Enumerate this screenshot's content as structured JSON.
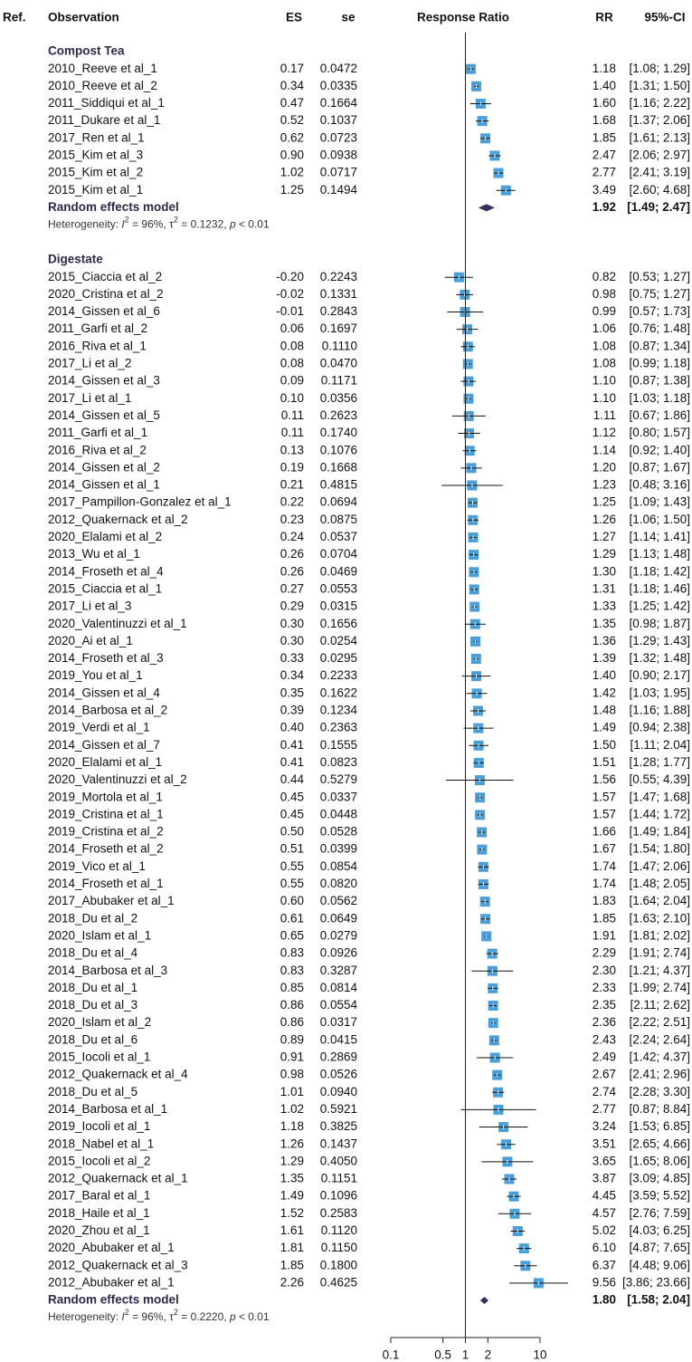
{
  "chart_data": {
    "type": "forest",
    "headers": {
      "ref": "Ref.",
      "observation": "Observation",
      "es": "ES",
      "se": "se",
      "axis_title": "Response Ratio",
      "rr": "RR",
      "ci": "95%-CI"
    },
    "log_scale": true,
    "xlim": [
      0.1,
      10
    ],
    "xticks": [
      0.1,
      0.5,
      1,
      2,
      10
    ],
    "reference": 1,
    "color": "#4a9fd8",
    "pooled_color": "#3b2d5c",
    "groups": [
      {
        "name": "Compost Tea",
        "studies": [
          {
            "study": "2010_Reeve et al_1",
            "es": "0.17",
            "se": "0.0472",
            "rr": 1.18,
            "rr_label": "1.18",
            "lo": 1.08,
            "hi": 1.29,
            "ci": "[1.08; 1.29]"
          },
          {
            "study": "2010_Reeve et al_2",
            "es": "0.34",
            "se": "0.0335",
            "rr": 1.4,
            "rr_label": "1.40",
            "lo": 1.31,
            "hi": 1.5,
            "ci": "[1.31; 1.50]"
          },
          {
            "study": "2011_Siddiqui et al_1",
            "es": "0.47",
            "se": "0.1664",
            "rr": 1.6,
            "rr_label": "1.60",
            "lo": 1.16,
            "hi": 2.22,
            "ci": "[1.16; 2.22]"
          },
          {
            "study": "2011_Dukare et al_1",
            "es": "0.52",
            "se": "0.1037",
            "rr": 1.68,
            "rr_label": "1.68",
            "lo": 1.37,
            "hi": 2.06,
            "ci": "[1.37; 2.06]"
          },
          {
            "study": "2017_Ren et al_1",
            "es": "0.62",
            "se": "0.0723",
            "rr": 1.85,
            "rr_label": "1.85",
            "lo": 1.61,
            "hi": 2.13,
            "ci": "[1.61; 2.13]"
          },
          {
            "study": "2015_Kim et al_3",
            "es": "0.90",
            "se": "0.0938",
            "rr": 2.47,
            "rr_label": "2.47",
            "lo": 2.06,
            "hi": 2.97,
            "ci": "[2.06; 2.97]"
          },
          {
            "study": "2015_Kim et al_2",
            "es": "1.02",
            "se": "0.0717",
            "rr": 2.77,
            "rr_label": "2.77",
            "lo": 2.41,
            "hi": 3.19,
            "ci": "[2.41; 3.19]"
          },
          {
            "study": "2015_Kim et al_1",
            "es": "1.25",
            "se": "0.1494",
            "rr": 3.49,
            "rr_label": "3.49",
            "lo": 2.6,
            "hi": 4.68,
            "ci": "[2.60; 4.68]"
          }
        ],
        "pooled": {
          "label": "Random effects model",
          "rr": 1.92,
          "rr_label": "1.92",
          "lo": 1.49,
          "hi": 2.47,
          "ci": "[1.49; 2.47]"
        },
        "heterogeneity": {
          "t1": "Heterogeneity: ",
          "i": "I",
          "s1": "2",
          "t2": " = 96%, ",
          "tau": "τ",
          "s2": "2",
          "t3": " = 0.1232, ",
          "p": "p",
          "t4": " < 0.01"
        }
      },
      {
        "name": "Digestate",
        "studies": [
          {
            "study": "2015_Ciaccia et al_2",
            "es": "-0.20",
            "se": "0.2243",
            "rr": 0.82,
            "rr_label": "0.82",
            "lo": 0.53,
            "hi": 1.27,
            "ci": "[0.53; 1.27]"
          },
          {
            "study": "2020_Cristina et al_2",
            "es": "-0.02",
            "se": "0.1331",
            "rr": 0.98,
            "rr_label": "0.98",
            "lo": 0.75,
            "hi": 1.27,
            "ci": "[0.75; 1.27]"
          },
          {
            "study": "2014_Gissen et al_6",
            "es": "-0.01",
            "se": "0.2843",
            "rr": 0.99,
            "rr_label": "0.99",
            "lo": 0.57,
            "hi": 1.73,
            "ci": "[0.57; 1.73]"
          },
          {
            "study": "2011_Garfi et al_2",
            "es": "0.06",
            "se": "0.1697",
            "rr": 1.06,
            "rr_label": "1.06",
            "lo": 0.76,
            "hi": 1.48,
            "ci": "[0.76; 1.48]"
          },
          {
            "study": "2016_Riva et al_1",
            "es": "0.08",
            "se": "0.1110",
            "rr": 1.08,
            "rr_label": "1.08",
            "lo": 0.87,
            "hi": 1.34,
            "ci": "[0.87; 1.34]"
          },
          {
            "study": "2017_Li et al_2",
            "es": "0.08",
            "se": "0.0470",
            "rr": 1.08,
            "rr_label": "1.08",
            "lo": 0.99,
            "hi": 1.18,
            "ci": "[0.99; 1.18]"
          },
          {
            "study": "2014_Gissen et al_3",
            "es": "0.09",
            "se": "0.1171",
            "rr": 1.1,
            "rr_label": "1.10",
            "lo": 0.87,
            "hi": 1.38,
            "ci": "[0.87; 1.38]"
          },
          {
            "study": "2017_Li et al_1",
            "es": "0.10",
            "se": "0.0356",
            "rr": 1.1,
            "rr_label": "1.10",
            "lo": 1.03,
            "hi": 1.18,
            "ci": "[1.03; 1.18]"
          },
          {
            "study": "2014_Gissen et al_5",
            "es": "0.11",
            "se": "0.2623",
            "rr": 1.11,
            "rr_label": "1.11",
            "lo": 0.67,
            "hi": 1.86,
            "ci": "[0.67; 1.86]"
          },
          {
            "study": "2011_Garfi et al_1",
            "es": "0.11",
            "se": "0.1740",
            "rr": 1.12,
            "rr_label": "1.12",
            "lo": 0.8,
            "hi": 1.57,
            "ci": "[0.80; 1.57]"
          },
          {
            "study": "2016_Riva et al_2",
            "es": "0.13",
            "se": "0.1076",
            "rr": 1.14,
            "rr_label": "1.14",
            "lo": 0.92,
            "hi": 1.4,
            "ci": "[0.92; 1.40]"
          },
          {
            "study": "2014_Gissen et al_2",
            "es": "0.19",
            "se": "0.1668",
            "rr": 1.2,
            "rr_label": "1.20",
            "lo": 0.87,
            "hi": 1.67,
            "ci": "[0.87; 1.67]"
          },
          {
            "study": "2014_Gissen et al_1",
            "es": "0.21",
            "se": "0.4815",
            "rr": 1.23,
            "rr_label": "1.23",
            "lo": 0.48,
            "hi": 3.16,
            "ci": "[0.48; 3.16]"
          },
          {
            "study": "2017_Pampillon-Gonzalez et al_1",
            "es": "0.22",
            "se": "0.0694",
            "rr": 1.25,
            "rr_label": "1.25",
            "lo": 1.09,
            "hi": 1.43,
            "ci": "[1.09; 1.43]"
          },
          {
            "study": "2012_Quakernack et al_2",
            "es": "0.23",
            "se": "0.0875",
            "rr": 1.26,
            "rr_label": "1.26",
            "lo": 1.06,
            "hi": 1.5,
            "ci": "[1.06; 1.50]"
          },
          {
            "study": "2020_Elalami et al_2",
            "es": "0.24",
            "se": "0.0537",
            "rr": 1.27,
            "rr_label": "1.27",
            "lo": 1.14,
            "hi": 1.41,
            "ci": "[1.14; 1.41]"
          },
          {
            "study": "2013_Wu et al_1",
            "es": "0.26",
            "se": "0.0704",
            "rr": 1.29,
            "rr_label": "1.29",
            "lo": 1.13,
            "hi": 1.48,
            "ci": "[1.13; 1.48]"
          },
          {
            "study": "2014_Froseth et al_4",
            "es": "0.26",
            "se": "0.0469",
            "rr": 1.3,
            "rr_label": "1.30",
            "lo": 1.18,
            "hi": 1.42,
            "ci": "[1.18; 1.42]"
          },
          {
            "study": "2015_Ciaccia et al_1",
            "es": "0.27",
            "se": "0.0553",
            "rr": 1.31,
            "rr_label": "1.31",
            "lo": 1.18,
            "hi": 1.46,
            "ci": "[1.18; 1.46]"
          },
          {
            "study": "2017_Li et al_3",
            "es": "0.29",
            "se": "0.0315",
            "rr": 1.33,
            "rr_label": "1.33",
            "lo": 1.25,
            "hi": 1.42,
            "ci": "[1.25; 1.42]"
          },
          {
            "study": "2020_Valentinuzzi et al_1",
            "es": "0.30",
            "se": "0.1656",
            "rr": 1.35,
            "rr_label": "1.35",
            "lo": 0.98,
            "hi": 1.87,
            "ci": "[0.98; 1.87]"
          },
          {
            "study": "2020_Ai et al_1",
            "es": "0.30",
            "se": "0.0254",
            "rr": 1.36,
            "rr_label": "1.36",
            "lo": 1.29,
            "hi": 1.43,
            "ci": "[1.29; 1.43]"
          },
          {
            "study": "2014_Froseth et al_3",
            "es": "0.33",
            "se": "0.0295",
            "rr": 1.39,
            "rr_label": "1.39",
            "lo": 1.32,
            "hi": 1.48,
            "ci": "[1.32; 1.48]"
          },
          {
            "study": "2019_You et al_1",
            "es": "0.34",
            "se": "0.2233",
            "rr": 1.4,
            "rr_label": "1.40",
            "lo": 0.9,
            "hi": 2.17,
            "ci": "[0.90; 2.17]"
          },
          {
            "study": "2014_Gissen et al_4",
            "es": "0.35",
            "se": "0.1622",
            "rr": 1.42,
            "rr_label": "1.42",
            "lo": 1.03,
            "hi": 1.95,
            "ci": "[1.03; 1.95]"
          },
          {
            "study": "2014_Barbosa et al_2",
            "es": "0.39",
            "se": "0.1234",
            "rr": 1.48,
            "rr_label": "1.48",
            "lo": 1.16,
            "hi": 1.88,
            "ci": "[1.16; 1.88]"
          },
          {
            "study": "2019_Verdi et al_1",
            "es": "0.40",
            "se": "0.2363",
            "rr": 1.49,
            "rr_label": "1.49",
            "lo": 0.94,
            "hi": 2.38,
            "ci": "[0.94; 2.38]"
          },
          {
            "study": "2014_Gissen et al_7",
            "es": "0.41",
            "se": "0.1555",
            "rr": 1.5,
            "rr_label": "1.50",
            "lo": 1.11,
            "hi": 2.04,
            "ci": "[1.11; 2.04]"
          },
          {
            "study": "2020_Elalami et al_1",
            "es": "0.41",
            "se": "0.0823",
            "rr": 1.51,
            "rr_label": "1.51",
            "lo": 1.28,
            "hi": 1.77,
            "ci": "[1.28; 1.77]"
          },
          {
            "study": "2020_Valentinuzzi et al_2",
            "es": "0.44",
            "se": "0.5279",
            "rr": 1.56,
            "rr_label": "1.56",
            "lo": 0.55,
            "hi": 4.39,
            "ci": "[0.55; 4.39]"
          },
          {
            "study": "2019_Mortola et al_1",
            "es": "0.45",
            "se": "0.0337",
            "rr": 1.57,
            "rr_label": "1.57",
            "lo": 1.47,
            "hi": 1.68,
            "ci": "[1.47; 1.68]"
          },
          {
            "study": "2019_Cristina et al_1",
            "es": "0.45",
            "se": "0.0448",
            "rr": 1.57,
            "rr_label": "1.57",
            "lo": 1.44,
            "hi": 1.72,
            "ci": "[1.44; 1.72]"
          },
          {
            "study": "2019_Cristina et al_2",
            "es": "0.50",
            "se": "0.0528",
            "rr": 1.66,
            "rr_label": "1.66",
            "lo": 1.49,
            "hi": 1.84,
            "ci": "[1.49; 1.84]"
          },
          {
            "study": "2014_Froseth et al_2",
            "es": "0.51",
            "se": "0.0399",
            "rr": 1.67,
            "rr_label": "1.67",
            "lo": 1.54,
            "hi": 1.8,
            "ci": "[1.54; 1.80]"
          },
          {
            "study": "2019_Vico et al_1",
            "es": "0.55",
            "se": "0.0854",
            "rr": 1.74,
            "rr_label": "1.74",
            "lo": 1.47,
            "hi": 2.06,
            "ci": "[1.47; 2.06]"
          },
          {
            "study": "2014_Froseth et al_1",
            "es": "0.55",
            "se": "0.0820",
            "rr": 1.74,
            "rr_label": "1.74",
            "lo": 1.48,
            "hi": 2.05,
            "ci": "[1.48; 2.05]"
          },
          {
            "study": "2017_Abubaker et al_1",
            "es": "0.60",
            "se": "0.0562",
            "rr": 1.83,
            "rr_label": "1.83",
            "lo": 1.64,
            "hi": 2.04,
            "ci": "[1.64; 2.04]"
          },
          {
            "study": "2018_Du et al_2",
            "es": "0.61",
            "se": "0.0649",
            "rr": 1.85,
            "rr_label": "1.85",
            "lo": 1.63,
            "hi": 2.1,
            "ci": "[1.63; 2.10]"
          },
          {
            "study": "2020_Islam et al_1",
            "es": "0.65",
            "se": "0.0279",
            "rr": 1.91,
            "rr_label": "1.91",
            "lo": 1.81,
            "hi": 2.02,
            "ci": "[1.81; 2.02]"
          },
          {
            "study": "2018_Du et al_4",
            "es": "0.83",
            "se": "0.0926",
            "rr": 2.29,
            "rr_label": "2.29",
            "lo": 1.91,
            "hi": 2.74,
            "ci": "[1.91; 2.74]"
          },
          {
            "study": "2014_Barbosa et al_3",
            "es": "0.83",
            "se": "0.3287",
            "rr": 2.3,
            "rr_label": "2.30",
            "lo": 1.21,
            "hi": 4.37,
            "ci": "[1.21; 4.37]"
          },
          {
            "study": "2018_Du et al_1",
            "es": "0.85",
            "se": "0.0814",
            "rr": 2.33,
            "rr_label": "2.33",
            "lo": 1.99,
            "hi": 2.74,
            "ci": "[1.99; 2.74]"
          },
          {
            "study": "2018_Du et al_3",
            "es": "0.86",
            "se": "0.0554",
            "rr": 2.35,
            "rr_label": "2.35",
            "lo": 2.11,
            "hi": 2.62,
            "ci": "[2.11; 2.62]"
          },
          {
            "study": "2020_Islam et al_2",
            "es": "0.86",
            "se": "0.0317",
            "rr": 2.36,
            "rr_label": "2.36",
            "lo": 2.22,
            "hi": 2.51,
            "ci": "[2.22; 2.51]"
          },
          {
            "study": "2018_Du et al_6",
            "es": "0.89",
            "se": "0.0415",
            "rr": 2.43,
            "rr_label": "2.43",
            "lo": 2.24,
            "hi": 2.64,
            "ci": "[2.24; 2.64]"
          },
          {
            "study": "2015_Iocoli et al_1",
            "es": "0.91",
            "se": "0.2869",
            "rr": 2.49,
            "rr_label": "2.49",
            "lo": 1.42,
            "hi": 4.37,
            "ci": "[1.42; 4.37]"
          },
          {
            "study": "2012_Quakernack et al_4",
            "es": "0.98",
            "se": "0.0526",
            "rr": 2.67,
            "rr_label": "2.67",
            "lo": 2.41,
            "hi": 2.96,
            "ci": "[2.41; 2.96]"
          },
          {
            "study": "2018_Du et al_5",
            "es": "1.01",
            "se": "0.0940",
            "rr": 2.74,
            "rr_label": "2.74",
            "lo": 2.28,
            "hi": 3.3,
            "ci": "[2.28; 3.30]"
          },
          {
            "study": "2014_Barbosa et al_1",
            "es": "1.02",
            "se": "0.5921",
            "rr": 2.77,
            "rr_label": "2.77",
            "lo": 0.87,
            "hi": 8.84,
            "ci": "[0.87; 8.84]"
          },
          {
            "study": "2019_Iocoli et al_1",
            "es": "1.18",
            "se": "0.3825",
            "rr": 3.24,
            "rr_label": "3.24",
            "lo": 1.53,
            "hi": 6.85,
            "ci": "[1.53; 6.85]"
          },
          {
            "study": "2018_Nabel et al_1",
            "es": "1.26",
            "se": "0.1437",
            "rr": 3.51,
            "rr_label": "3.51",
            "lo": 2.65,
            "hi": 4.66,
            "ci": "[2.65; 4.66]"
          },
          {
            "study": "2015_Iocoli et al_2",
            "es": "1.29",
            "se": "0.4050",
            "rr": 3.65,
            "rr_label": "3.65",
            "lo": 1.65,
            "hi": 8.06,
            "ci": "[1.65; 8.06]"
          },
          {
            "study": "2012_Quakernack et al_1",
            "es": "1.35",
            "se": "0.1151",
            "rr": 3.87,
            "rr_label": "3.87",
            "lo": 3.09,
            "hi": 4.85,
            "ci": "[3.09; 4.85]"
          },
          {
            "study": "2017_Baral et al_1",
            "es": "1.49",
            "se": "0.1096",
            "rr": 4.45,
            "rr_label": "4.45",
            "lo": 3.59,
            "hi": 5.52,
            "ci": "[3.59; 5.52]"
          },
          {
            "study": "2018_Haile et al_1",
            "es": "1.52",
            "se": "0.2583",
            "rr": 4.57,
            "rr_label": "4.57",
            "lo": 2.76,
            "hi": 7.59,
            "ci": "[2.76; 7.59]"
          },
          {
            "study": "2020_Zhou et al_1",
            "es": "1.61",
            "se": "0.1120",
            "rr": 5.02,
            "rr_label": "5.02",
            "lo": 4.03,
            "hi": 6.25,
            "ci": "[4.03; 6.25]"
          },
          {
            "study": "2020_Abubaker et al_1",
            "es": "1.81",
            "se": "0.1150",
            "rr": 6.1,
            "rr_label": "6.10",
            "lo": 4.87,
            "hi": 7.65,
            "ci": "[4.87; 7.65]"
          },
          {
            "study": "2012_Quakernack et al_3",
            "es": "1.85",
            "se": "0.1800",
            "rr": 6.37,
            "rr_label": "6.37",
            "lo": 4.48,
            "hi": 9.06,
            "ci": "[4.48; 9.06]"
          },
          {
            "study": "2012_Abubaker et al_1",
            "es": "2.26",
            "se": "0.4625",
            "rr": 9.56,
            "rr_label": "9.56",
            "lo": 3.86,
            "hi": 23.66,
            "ci": "[3.86; 23.66]"
          }
        ],
        "pooled": {
          "label": "Random effects model",
          "rr": 1.8,
          "rr_label": "1.80",
          "lo": 1.58,
          "hi": 2.04,
          "ci": "[1.58; 2.04]"
        },
        "heterogeneity": {
          "t1": "Heterogeneity: ",
          "i": "I",
          "s1": "2",
          "t2": " = 96%, ",
          "tau": "τ",
          "s2": "2",
          "t3": " = 0.2220, ",
          "p": "p",
          "t4": " < 0.01"
        }
      }
    ]
  }
}
